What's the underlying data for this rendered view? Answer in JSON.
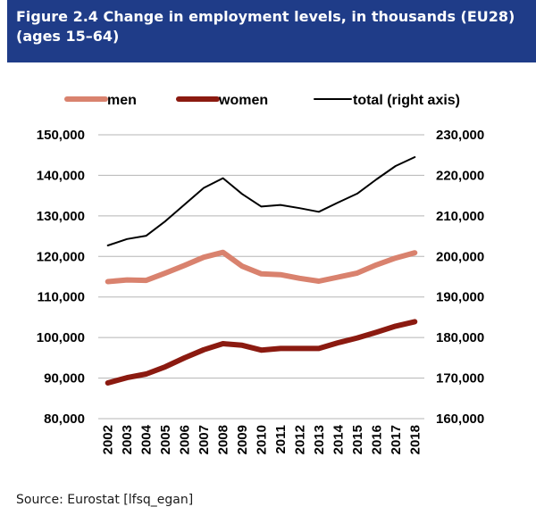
{
  "header": {
    "title_line1": "Figure 2.4 Change in employment levels, in thousands (EU28)",
    "title_line2": "(ages 15–64)"
  },
  "source": "Source: Eurostat [lfsq_egan]",
  "chart_data": {
    "type": "line",
    "title": "Figure 2.4 Change in employment levels, in thousands (EU28) (ages 15–64)",
    "x": [
      "2002",
      "2003",
      "2004",
      "2005",
      "2006",
      "2007",
      "2008",
      "2009",
      "2010",
      "2011",
      "2012",
      "2013",
      "2014",
      "2015",
      "2016",
      "2017",
      "2018"
    ],
    "series": [
      {
        "name": "men",
        "axis": "left",
        "color": "#d9826e",
        "values": [
          113800,
          114200,
          114100,
          115900,
          117800,
          119800,
          121000,
          117600,
          115700,
          115500,
          114600,
          113900,
          114900,
          115900,
          117900,
          119600,
          120900
        ]
      },
      {
        "name": "women",
        "axis": "left",
        "color": "#8b1a10",
        "values": [
          88800,
          90100,
          91000,
          92800,
          95000,
          97000,
          98500,
          98100,
          96900,
          97300,
          97300,
          97300,
          98700,
          99900,
          101300,
          102800,
          103900
        ]
      },
      {
        "name": "total (right axis)",
        "axis": "right",
        "color": "#000000",
        "values": [
          202700,
          204300,
          205100,
          208700,
          212800,
          216900,
          219300,
          215400,
          212300,
          212700,
          211900,
          211000,
          213300,
          215500,
          219000,
          222300,
          224500
        ]
      }
    ],
    "y_left": {
      "min": 80000,
      "max": 150000,
      "step": 10000,
      "ticks": [
        "80,000",
        "90,000",
        "100,000",
        "110,000",
        "120,000",
        "130,000",
        "140,000",
        "150,000"
      ]
    },
    "y_right": {
      "min": 160000,
      "max": 230000,
      "step": 10000,
      "ticks": [
        "160,000",
        "170,000",
        "180,000",
        "190,000",
        "200,000",
        "210,000",
        "220,000",
        "230,000"
      ]
    },
    "grid": true,
    "legend": "top"
  }
}
